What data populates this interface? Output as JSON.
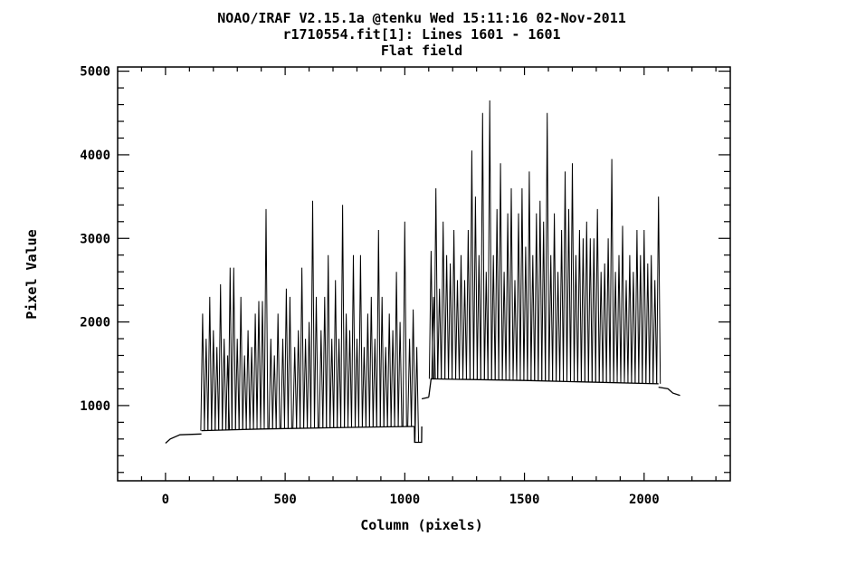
{
  "header": {
    "line1": "NOAO/IRAF V2.15.1a @tenku Wed 15:11:16 02-Nov-2011",
    "line2": "r1710554.fit[1]: Lines 1601 - 1601",
    "line3": "Flat field"
  },
  "chart_data": {
    "type": "line",
    "title": "Flat field",
    "xlabel": "Column (pixels)",
    "ylabel": "Pixel Value",
    "xlim": [
      -200,
      2360
    ],
    "ylim": [
      100,
      5050
    ],
    "x_ticks": [
      0,
      500,
      1000,
      1500,
      2000
    ],
    "x_tick_labels": [
      "0",
      "500",
      "1000",
      "1500",
      "2000"
    ],
    "y_ticks": [
      1000,
      2000,
      3000,
      4000,
      5000
    ],
    "y_tick_labels": [
      "1000",
      "2000",
      "3000",
      "4000",
      "5000"
    ],
    "grid": false,
    "series": [
      {
        "segments": [
          {
            "x": [
              0,
              20,
              60,
              150
            ],
            "y": [
              550,
              600,
              650,
              660
            ]
          },
          {
            "x": [
              150,
              400,
              800,
              1040
            ],
            "y": [
              700,
              720,
              740,
              750
            ]
          },
          {
            "x": [
              1040,
              1041,
              1070,
              1071
            ],
            "y": [
              750,
              560,
              560,
              750
            ]
          },
          {
            "x": [
              1071,
              1100
            ],
            "y": [
              1080,
              1100
            ]
          },
          {
            "x": [
              1100,
              1110,
              1500,
              2060
            ],
            "y": [
              1100,
              1320,
              1300,
              1260
            ]
          },
          {
            "x": [
              2060,
              2100,
              2120,
              2150
            ],
            "y": [
              1220,
              1200,
              1150,
              1120
            ]
          }
        ],
        "peaks": [
          {
            "x": 155,
            "y": 2100
          },
          {
            "x": 170,
            "y": 1800
          },
          {
            "x": 185,
            "y": 2300
          },
          {
            "x": 200,
            "y": 1900
          },
          {
            "x": 215,
            "y": 1700
          },
          {
            "x": 230,
            "y": 2450
          },
          {
            "x": 245,
            "y": 1800
          },
          {
            "x": 260,
            "y": 1600
          },
          {
            "x": 270,
            "y": 2650
          },
          {
            "x": 285,
            "y": 2650
          },
          {
            "x": 300,
            "y": 1800
          },
          {
            "x": 315,
            "y": 2300
          },
          {
            "x": 330,
            "y": 1600
          },
          {
            "x": 345,
            "y": 1900
          },
          {
            "x": 360,
            "y": 1700
          },
          {
            "x": 375,
            "y": 2100
          },
          {
            "x": 390,
            "y": 2250
          },
          {
            "x": 405,
            "y": 2250
          },
          {
            "x": 420,
            "y": 3350
          },
          {
            "x": 440,
            "y": 1800
          },
          {
            "x": 455,
            "y": 1600
          },
          {
            "x": 470,
            "y": 2100
          },
          {
            "x": 490,
            "y": 1800
          },
          {
            "x": 505,
            "y": 2400
          },
          {
            "x": 520,
            "y": 2300
          },
          {
            "x": 540,
            "y": 1700
          },
          {
            "x": 555,
            "y": 1900
          },
          {
            "x": 570,
            "y": 2650
          },
          {
            "x": 585,
            "y": 1800
          },
          {
            "x": 600,
            "y": 2000
          },
          {
            "x": 615,
            "y": 3450
          },
          {
            "x": 630,
            "y": 2300
          },
          {
            "x": 650,
            "y": 1900
          },
          {
            "x": 665,
            "y": 2300
          },
          {
            "x": 680,
            "y": 2800
          },
          {
            "x": 695,
            "y": 1800
          },
          {
            "x": 710,
            "y": 2500
          },
          {
            "x": 725,
            "y": 1800
          },
          {
            "x": 740,
            "y": 3400
          },
          {
            "x": 755,
            "y": 2100
          },
          {
            "x": 770,
            "y": 1900
          },
          {
            "x": 785,
            "y": 2800
          },
          {
            "x": 800,
            "y": 1800
          },
          {
            "x": 815,
            "y": 2800
          },
          {
            "x": 830,
            "y": 1700
          },
          {
            "x": 845,
            "y": 2100
          },
          {
            "x": 860,
            "y": 2300
          },
          {
            "x": 875,
            "y": 1800
          },
          {
            "x": 890,
            "y": 3100
          },
          {
            "x": 905,
            "y": 2300
          },
          {
            "x": 920,
            "y": 1700
          },
          {
            "x": 935,
            "y": 2100
          },
          {
            "x": 950,
            "y": 1900
          },
          {
            "x": 965,
            "y": 2600
          },
          {
            "x": 980,
            "y": 2000
          },
          {
            "x": 1000,
            "y": 3200
          },
          {
            "x": 1020,
            "y": 1800
          },
          {
            "x": 1035,
            "y": 2150
          },
          {
            "x": 1050,
            "y": 1700
          },
          {
            "x": 1110,
            "y": 2850
          },
          {
            "x": 1120,
            "y": 2300
          },
          {
            "x": 1130,
            "y": 3600
          },
          {
            "x": 1145,
            "y": 2400
          },
          {
            "x": 1160,
            "y": 3200
          },
          {
            "x": 1175,
            "y": 2800
          },
          {
            "x": 1190,
            "y": 2700
          },
          {
            "x": 1205,
            "y": 3100
          },
          {
            "x": 1220,
            "y": 2500
          },
          {
            "x": 1235,
            "y": 2800
          },
          {
            "x": 1250,
            "y": 2500
          },
          {
            "x": 1265,
            "y": 3100
          },
          {
            "x": 1280,
            "y": 4050
          },
          {
            "x": 1295,
            "y": 3500
          },
          {
            "x": 1310,
            "y": 2800
          },
          {
            "x": 1325,
            "y": 4500
          },
          {
            "x": 1340,
            "y": 2600
          },
          {
            "x": 1355,
            "y": 4650
          },
          {
            "x": 1370,
            "y": 2800
          },
          {
            "x": 1385,
            "y": 3350
          },
          {
            "x": 1400,
            "y": 3900
          },
          {
            "x": 1415,
            "y": 2600
          },
          {
            "x": 1430,
            "y": 3300
          },
          {
            "x": 1445,
            "y": 3600
          },
          {
            "x": 1460,
            "y": 2500
          },
          {
            "x": 1475,
            "y": 3300
          },
          {
            "x": 1490,
            "y": 3600
          },
          {
            "x": 1505,
            "y": 2900
          },
          {
            "x": 1520,
            "y": 3800
          },
          {
            "x": 1535,
            "y": 2800
          },
          {
            "x": 1550,
            "y": 3300
          },
          {
            "x": 1565,
            "y": 3450
          },
          {
            "x": 1580,
            "y": 3200
          },
          {
            "x": 1595,
            "y": 4500
          },
          {
            "x": 1610,
            "y": 2800
          },
          {
            "x": 1625,
            "y": 3300
          },
          {
            "x": 1640,
            "y": 2600
          },
          {
            "x": 1655,
            "y": 3100
          },
          {
            "x": 1670,
            "y": 3800
          },
          {
            "x": 1685,
            "y": 3350
          },
          {
            "x": 1700,
            "y": 3900
          },
          {
            "x": 1715,
            "y": 2800
          },
          {
            "x": 1730,
            "y": 3100
          },
          {
            "x": 1745,
            "y": 3000
          },
          {
            "x": 1760,
            "y": 3200
          },
          {
            "x": 1775,
            "y": 3000
          },
          {
            "x": 1790,
            "y": 3000
          },
          {
            "x": 1805,
            "y": 3350
          },
          {
            "x": 1820,
            "y": 2600
          },
          {
            "x": 1835,
            "y": 2700
          },
          {
            "x": 1850,
            "y": 3000
          },
          {
            "x": 1865,
            "y": 3950
          },
          {
            "x": 1880,
            "y": 2600
          },
          {
            "x": 1895,
            "y": 2800
          },
          {
            "x": 1910,
            "y": 3150
          },
          {
            "x": 1925,
            "y": 2500
          },
          {
            "x": 1940,
            "y": 2800
          },
          {
            "x": 1955,
            "y": 2600
          },
          {
            "x": 1970,
            "y": 3100
          },
          {
            "x": 1985,
            "y": 2800
          },
          {
            "x": 2000,
            "y": 3100
          },
          {
            "x": 2015,
            "y": 2700
          },
          {
            "x": 2030,
            "y": 2800
          },
          {
            "x": 2045,
            "y": 2500
          },
          {
            "x": 2060,
            "y": 3500
          }
        ]
      }
    ]
  }
}
